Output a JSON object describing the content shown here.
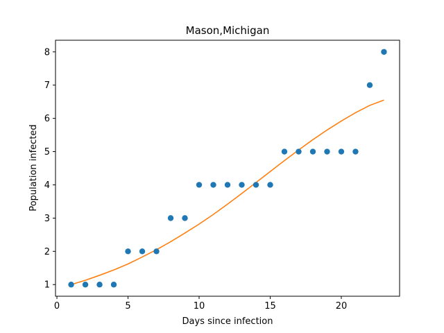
{
  "chart_data": {
    "type": "scatter",
    "title": "Mason,Michigan",
    "xlabel": "Days since infection",
    "ylabel": "Population infected",
    "xlim": [
      -0.1,
      24.1
    ],
    "ylim": [
      0.65,
      8.35
    ],
    "xticks": [
      0,
      5,
      10,
      15,
      20
    ],
    "yticks": [
      1,
      2,
      3,
      4,
      5,
      6,
      7,
      8
    ],
    "grid": false,
    "colors": {
      "points": "#1f77b4",
      "fit": "#ff7f0e"
    },
    "series": [
      {
        "type": "scatter",
        "x": [
          1,
          2,
          3,
          4,
          5,
          6,
          7,
          8,
          9,
          10,
          11,
          12,
          13,
          14,
          15,
          16,
          17,
          18,
          19,
          20,
          21,
          22,
          23
        ],
        "y": [
          1,
          1,
          1,
          1,
          2,
          2,
          2,
          3,
          3,
          4,
          4,
          4,
          4,
          4,
          4,
          5,
          5,
          5,
          5,
          5,
          5,
          7,
          8
        ]
      },
      {
        "type": "line",
        "x": [
          1,
          2,
          3,
          4,
          5,
          6,
          7,
          8,
          9,
          10,
          11,
          12,
          13,
          14,
          15,
          16,
          17,
          18,
          19,
          20,
          21,
          22,
          23
        ],
        "y": [
          1.0,
          1.13,
          1.28,
          1.44,
          1.62,
          1.83,
          2.05,
          2.29,
          2.55,
          2.82,
          3.11,
          3.42,
          3.74,
          4.07,
          4.4,
          4.73,
          5.05,
          5.36,
          5.65,
          5.92,
          6.17,
          6.39,
          6.55
        ]
      }
    ]
  }
}
